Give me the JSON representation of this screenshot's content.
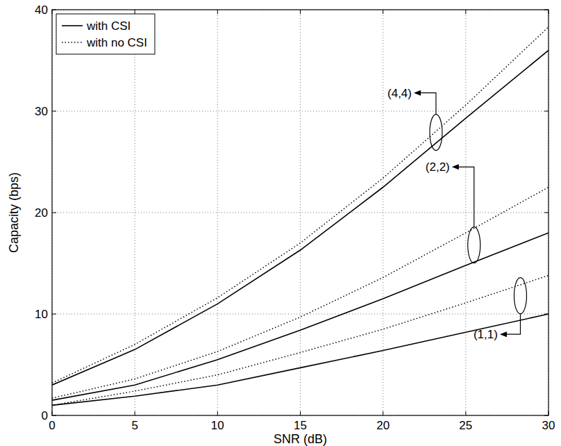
{
  "chart_data": {
    "type": "line",
    "x_label": "SNR (dB)",
    "y_label": "Capacity (bps)",
    "x": [
      0,
      5,
      10,
      15,
      20,
      25,
      30
    ],
    "series": [
      {
        "name": "with CSI",
        "color": "#000000",
        "line_style": "solid",
        "values": [
          3.0,
          6.5,
          11.0,
          16.3,
          22.5,
          29.3,
          36.0
        ]
      },
      {
        "name": "with no CSI",
        "color": "#000000",
        "line_style": "dotted",
        "values": [
          3.2,
          7.0,
          11.6,
          17.0,
          23.4,
          30.6,
          38.3
        ]
      },
      {
        "name": "with CSI",
        "color": "#000000",
        "line_style": "solid",
        "values": [
          1.5,
          3.0,
          5.5,
          8.4,
          11.5,
          14.8,
          18.0
        ]
      },
      {
        "name": "with no CSI",
        "color": "#000000",
        "line_style": "dotted",
        "values": [
          1.7,
          3.6,
          6.3,
          9.7,
          13.6,
          18.0,
          22.5
        ]
      },
      {
        "name": "with CSI",
        "color": "#000000",
        "line_style": "solid",
        "values": [
          1.0,
          1.9,
          3.0,
          4.7,
          6.4,
          8.2,
          10.0
        ]
      },
      {
        "name": "with no CSI",
        "color": "#000000",
        "line_style": "dotted",
        "values": [
          1.0,
          2.4,
          4.0,
          6.2,
          8.5,
          11.1,
          13.8
        ]
      }
    ],
    "annotations": [
      {
        "text": "(4,4)",
        "x": 23.2,
        "y": 27.9,
        "text_x": 21.0,
        "text_y": 31.8
      },
      {
        "text": "(2,2)",
        "x": 25.5,
        "y": 16.8,
        "text_x": 23.3,
        "text_y": 24.5
      },
      {
        "text": "(1,1)",
        "x": 28.3,
        "y": 11.8,
        "text_x": 26.2,
        "text_y": 8.0
      }
    ],
    "xlim": [
      0,
      30
    ],
    "ylim": [
      0,
      40
    ],
    "xticks": [
      0,
      5,
      10,
      15,
      20,
      25,
      30
    ],
    "yticks": [
      0,
      10,
      20,
      30,
      40
    ],
    "grid": true,
    "legend": "upper left"
  }
}
